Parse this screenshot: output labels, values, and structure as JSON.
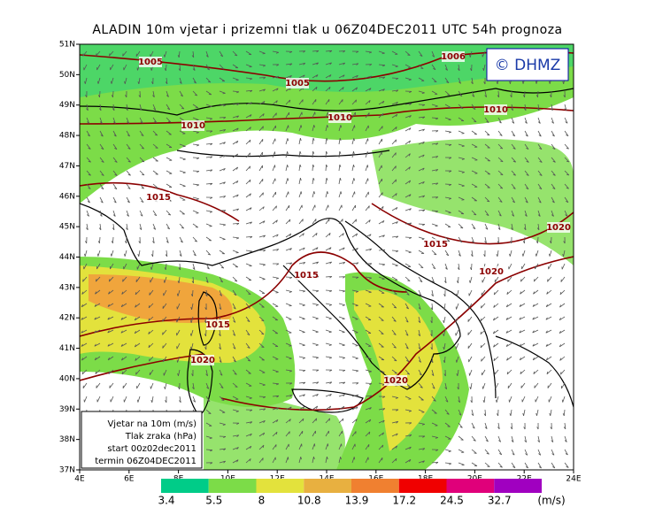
{
  "title": "ALADIN 10m vjetar i prizemni tlak u 06Z04DEC2011 UTC 54h prognoza",
  "logo": "© DHMZ",
  "lat_labels": [
    "51N",
    "50N",
    "49N",
    "48N",
    "47N",
    "46N",
    "45N",
    "44N",
    "43N",
    "42N",
    "41N",
    "40N",
    "39N",
    "38N",
    "37N"
  ],
  "lon_labels": [
    "4E",
    "6E",
    "8E",
    "10E",
    "12E",
    "14E",
    "16E",
    "18E",
    "20E",
    "22E",
    "24E"
  ],
  "isobar_labels": [
    "1005",
    "1006",
    "1005",
    "1010",
    "1010",
    "1010",
    "1015",
    "1015",
    "1020",
    "1020",
    "1015",
    "1015",
    "1020",
    "1020"
  ],
  "info_box": [
    "Vjetar na 10m (m/s)",
    "Tlak zraka (hPa)",
    "start 00z02dec2011",
    "termin 06Z04DEC2011"
  ],
  "colorbar": {
    "labels": [
      "3.4",
      "5.5",
      "8",
      "10.8",
      "13.9",
      "17.2",
      "24.5",
      "32.7"
    ],
    "unit": "(m/s)"
  }
}
